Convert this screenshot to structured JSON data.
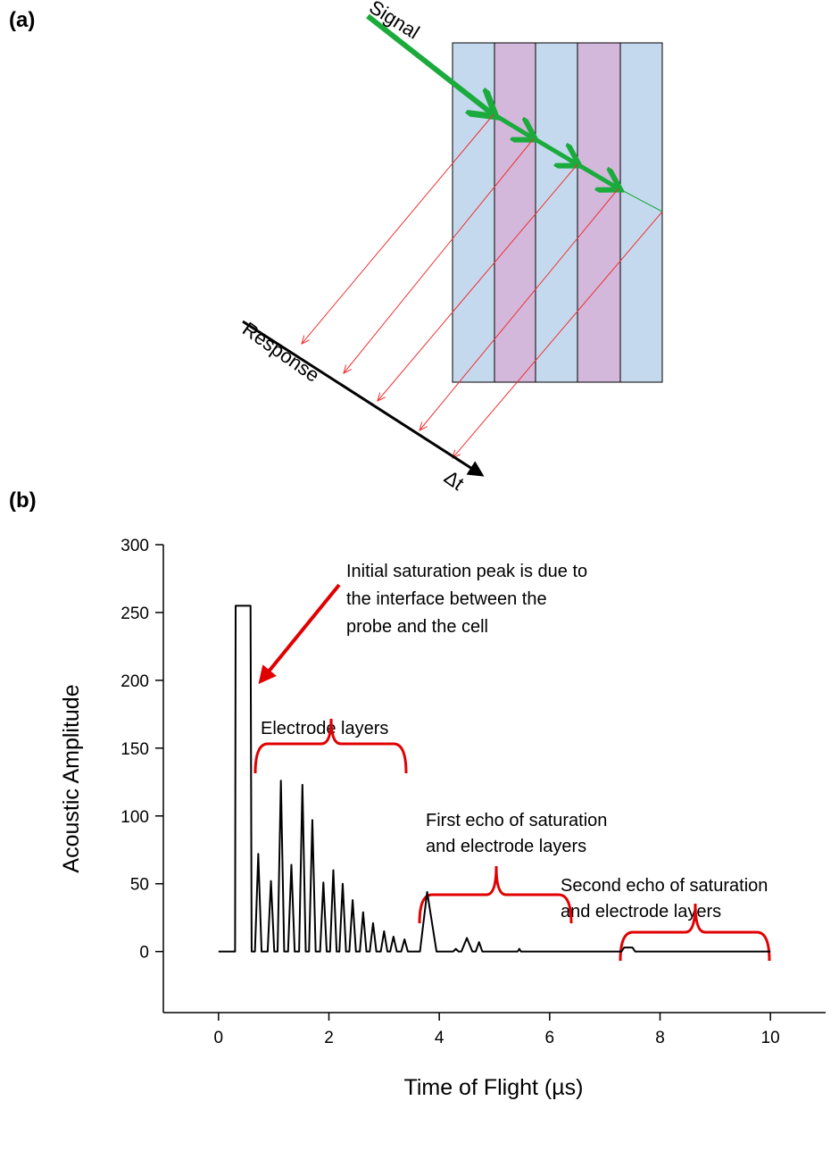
{
  "diagram": {
    "panel_label": "(a)",
    "signal": "Signal",
    "response": "Response",
    "delta_t": "Δt"
  },
  "chart_data": {
    "type": "line",
    "panel_label": "(b)",
    "x_label": "Time of Flight (µs)",
    "y_label": "Acoustic Amplitude",
    "annotations": {
      "initial_peak": [
        "Initial saturation peak is due to",
        "the interface between the",
        "probe and the cell"
      ],
      "electrode_layers": "Electrode layers",
      "first_echo": [
        "First echo of saturation",
        "and electrode layers"
      ],
      "second_echo": [
        "Second echo of saturation",
        "and electrode layers"
      ]
    },
    "x": [
      0,
      0.3,
      0.31,
      0.58,
      0.6,
      0.66,
      0.72,
      0.78,
      0.89,
      0.95,
      1.01,
      1.07,
      1.13,
      1.19,
      1.26,
      1.32,
      1.38,
      1.46,
      1.52,
      1.58,
      1.64,
      1.7,
      1.76,
      1.84,
      1.9,
      1.96,
      2.02,
      2.08,
      2.14,
      2.19,
      2.25,
      2.31,
      2.37,
      2.43,
      2.49,
      2.56,
      2.62,
      2.68,
      2.74,
      2.8,
      2.86,
      2.94,
      3.0,
      3.06,
      3.11,
      3.17,
      3.23,
      3.31,
      3.37,
      3.43,
      3.65,
      3.78,
      3.95,
      4.25,
      4.3,
      4.35,
      4.4,
      4.5,
      4.6,
      4.66,
      4.72,
      4.78,
      5.42,
      5.45,
      5.48,
      7.3,
      7.35,
      7.5,
      7.55,
      10
    ],
    "series": [
      {
        "color": "#000000",
        "values": [
          0,
          0,
          255,
          255,
          0,
          0,
          72,
          0,
          0,
          52,
          0,
          0,
          126,
          0,
          0,
          64,
          0,
          0,
          123,
          0,
          0,
          97,
          0,
          0,
          51,
          0,
          0,
          60,
          0,
          0,
          50,
          0,
          0,
          38,
          0,
          0,
          29,
          0,
          0,
          21,
          0,
          0,
          15,
          0,
          0,
          11,
          0,
          0,
          9,
          0,
          0,
          44,
          0,
          0,
          2,
          0,
          0,
          10,
          0,
          0,
          7,
          0,
          0,
          2,
          0,
          0,
          3,
          3,
          0,
          0
        ]
      }
    ],
    "xlim": [
      -1,
      11
    ],
    "ylim": [
      -45,
      300
    ],
    "xticks": [
      0,
      2,
      4,
      6,
      8,
      10
    ],
    "yticks": [
      0,
      50,
      100,
      150,
      200,
      250,
      300
    ]
  }
}
